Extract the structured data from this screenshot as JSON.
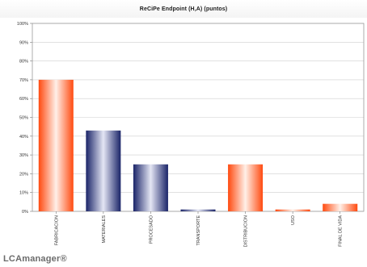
{
  "watermark": "LCAmanager®",
  "chart_data": {
    "type": "bar",
    "title": "ReCiPe Endpoint (H,A) (puntos)",
    "xlabel": "",
    "ylabel": "",
    "ylim": [
      0,
      100
    ],
    "y_ticks": [
      0,
      10,
      20,
      30,
      40,
      50,
      60,
      70,
      80,
      90,
      100
    ],
    "y_tick_suffix": "%",
    "grid": true,
    "legend": "none",
    "categories": [
      "FABRICACION",
      "MATERIALES",
      "PROCESADO",
      "TRANSPORTE",
      "DISTRIBUCION",
      "USO",
      "FINAL DE VIDA"
    ],
    "values": [
      70,
      43,
      25,
      1,
      25,
      1,
      4
    ],
    "bar_colors": [
      "orange",
      "navy",
      "navy",
      "navy",
      "orange",
      "orange",
      "orange"
    ],
    "colors": {
      "orange": "#ff5a1f",
      "navy": "#1f2a6e"
    }
  }
}
